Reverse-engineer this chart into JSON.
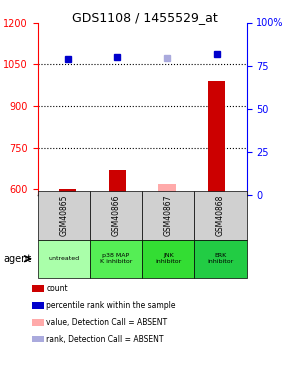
{
  "title": "GDS1108 / 1455529_at",
  "samples": [
    "GSM40865",
    "GSM40866",
    "GSM40867",
    "GSM40868"
  ],
  "agent_labels": [
    "untreated",
    "p38 MAP\nK inhibitor",
    "JNK\ninhibitor",
    "ERK\ninhibitor"
  ],
  "agent_colors": [
    "#aaffaa",
    "#55ee55",
    "#33dd33",
    "#22cc44"
  ],
  "ylim_left": [
    580,
    1200
  ],
  "ylim_right": [
    0,
    100
  ],
  "yticks_left": [
    600,
    750,
    900,
    1050,
    1200
  ],
  "yticks_right": [
    0,
    25,
    50,
    75,
    100
  ],
  "bar_values": [
    602,
    670,
    620,
    990
  ],
  "bar_absent": [
    false,
    false,
    true,
    false
  ],
  "rank_values": [
    79,
    80,
    79.5,
    82
  ],
  "rank_absent": [
    false,
    false,
    true,
    false
  ],
  "bar_color_present": "#cc0000",
  "bar_color_absent": "#ffaaaa",
  "rank_color_present": "#0000cc",
  "rank_color_absent": "#aaaadd",
  "bar_width": 0.4,
  "legend_items": [
    {
      "color": "#cc0000",
      "label": "count"
    },
    {
      "color": "#0000cc",
      "label": "percentile rank within the sample"
    },
    {
      "color": "#ffaaaa",
      "label": "value, Detection Call = ABSENT"
    },
    {
      "color": "#aaaadd",
      "label": "rank, Detection Call = ABSENT"
    }
  ]
}
